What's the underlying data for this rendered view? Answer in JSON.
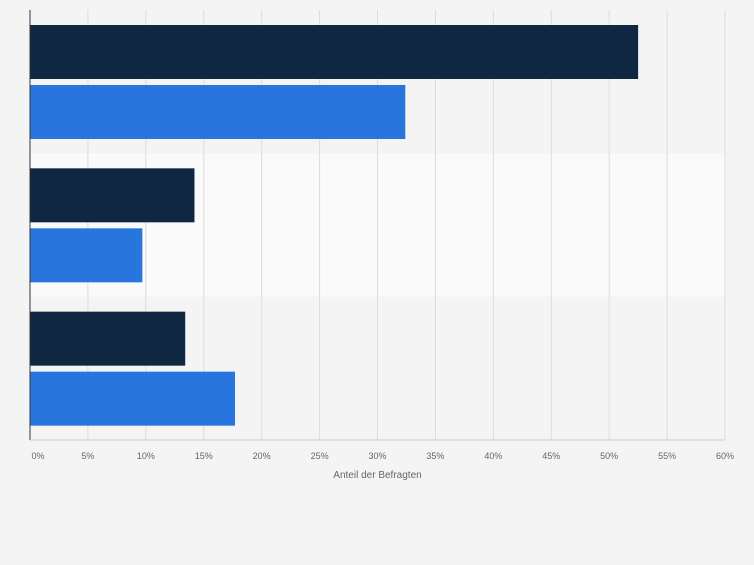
{
  "chart_data": {
    "type": "bar",
    "orientation": "horizontal",
    "categories": [
      "",
      "",
      ""
    ],
    "series": [
      {
        "values": [
          52.5,
          14.2,
          13.4
        ],
        "color": "#0f2741"
      },
      {
        "values": [
          32.4,
          9.7,
          17.7
        ],
        "color": "#2876dd"
      }
    ],
    "xlabel": "Anteil der Befragten",
    "ylabel": "",
    "xlim": [
      0,
      60
    ],
    "x_ticks": [
      0,
      5,
      10,
      15,
      20,
      25,
      30,
      35,
      40,
      45,
      50,
      55,
      60
    ],
    "x_tick_labels": [
      "0%",
      "5%",
      "10%",
      "15%",
      "20%",
      "25%",
      "30%",
      "35%",
      "40%",
      "45%",
      "50%",
      "55%",
      "60%"
    ],
    "grid": true,
    "legend": "none"
  },
  "colors": {
    "background": "#f4f4f4",
    "band_alt": "#fafafa",
    "grid": "#dcdcdc",
    "axis": "#333333",
    "tick_text": "#666666"
  }
}
